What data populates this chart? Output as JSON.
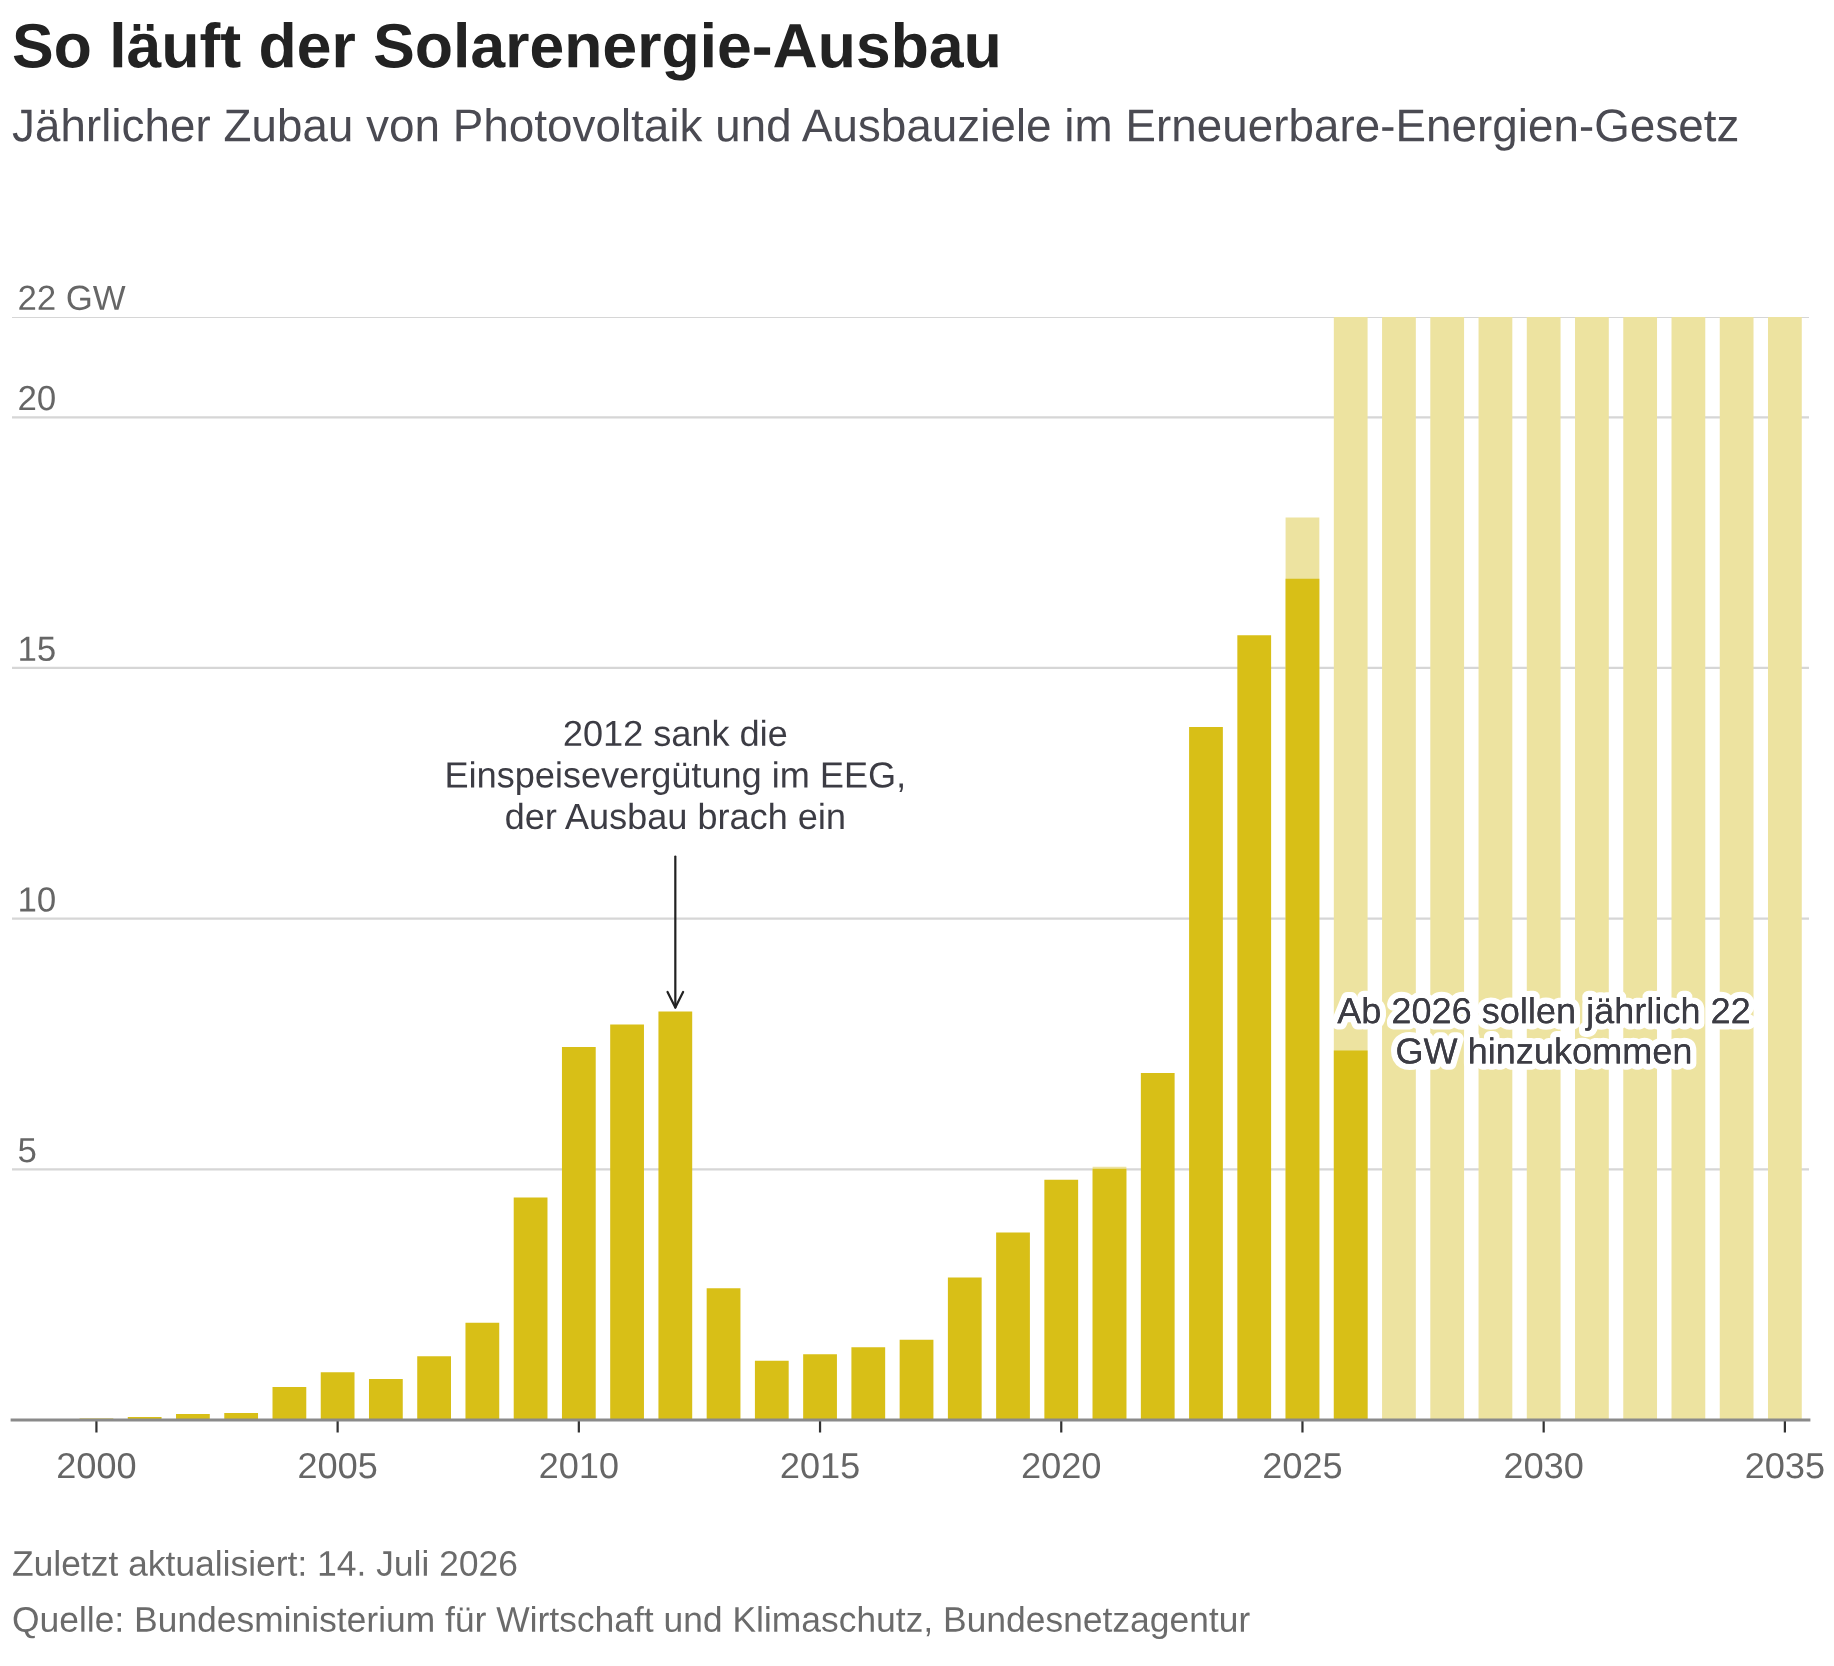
{
  "chart_data": {
    "type": "bar",
    "title": "So läuft der Solarenergie-Ausbau",
    "subtitle": "Jährlicher Zubau von Photovoltaik und Ausbauziele im Erneuerbare-Energien-Gesetz",
    "x": [
      2000,
      2001,
      2002,
      2003,
      2004,
      2005,
      2006,
      2007,
      2008,
      2009,
      2010,
      2011,
      2012,
      2013,
      2014,
      2015,
      2016,
      2017,
      2018,
      2019,
      2020,
      2021,
      2022,
      2023,
      2024,
      2025,
      2026,
      2027,
      2028,
      2029,
      2030,
      2031,
      2032,
      2033,
      2034,
      2035
    ],
    "series": [
      {
        "color": "#ede3a0",
        "values": [
          null,
          null,
          null,
          null,
          null,
          null,
          null,
          null,
          null,
          null,
          null,
          null,
          null,
          null,
          null,
          null,
          null,
          null,
          null,
          null,
          null,
          5.05,
          null,
          null,
          null,
          18,
          22,
          22,
          22,
          22,
          22,
          22,
          22,
          22,
          22,
          22
        ]
      },
      {
        "color": "#d8bf17",
        "values": [
          0.03,
          0.06,
          0.12,
          0.14,
          0.66,
          0.95,
          0.82,
          1.27,
          1.94,
          4.44,
          7.44,
          7.89,
          8.15,
          2.63,
          1.18,
          1.31,
          1.45,
          1.6,
          2.84,
          3.74,
          4.79,
          5.01,
          6.92,
          13.82,
          15.65,
          16.78,
          7.37,
          null,
          null,
          null,
          null,
          null,
          null,
          null,
          null,
          null
        ]
      }
    ],
    "xlim": [
      1998.25,
      2035.5
    ],
    "xticks": [
      2000,
      2005,
      2010,
      2015,
      2020,
      2025,
      2030,
      2035
    ],
    "ylim": [
      0,
      22
    ],
    "yticks": [
      5,
      10,
      15,
      20,
      {
        "value": 22,
        "label": "22 GW"
      }
    ],
    "grid": "y",
    "annotations": [
      {
        "text": "2012 sank die\nEinspeisevergütung im EEG,\nder Ausbau brach ein",
        "x": 2012,
        "y": 8.15
      },
      "Ab 2026 sollen jährlich 22\nGW hinzukommen",
      "Zuletzt aktualisiert: 14. Juli 2026",
      "Quelle: Bundesministerium für Wirtschaft und Klimaschutz, Bundesnetzagentur"
    ]
  }
}
